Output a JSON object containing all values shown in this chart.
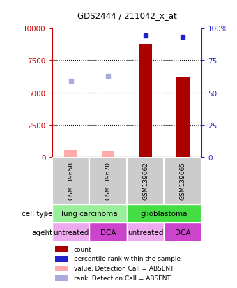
{
  "title": "GDS2444 / 211042_x_at",
  "samples": [
    "GSM139658",
    "GSM139670",
    "GSM139662",
    "GSM139665"
  ],
  "count_values": [
    0,
    0,
    8800,
    6200
  ],
  "count_absent": [
    500,
    480,
    0,
    0
  ],
  "percentile_values": [
    0,
    0,
    94,
    93
  ],
  "percentile_absent": [
    59,
    63,
    0,
    0
  ],
  "cell_types": [
    {
      "label": "lung carcinoma",
      "span": [
        0,
        2
      ],
      "color": "#99ee99"
    },
    {
      "label": "glioblastoma",
      "span": [
        2,
        4
      ],
      "color": "#44dd44"
    }
  ],
  "agents": [
    {
      "label": "untreated",
      "span": [
        0,
        1
      ],
      "color": "#eeaaee"
    },
    {
      "label": "DCA",
      "span": [
        1,
        2
      ],
      "color": "#cc44cc"
    },
    {
      "label": "untreated",
      "span": [
        2,
        3
      ],
      "color": "#eeaaee"
    },
    {
      "label": "DCA",
      "span": [
        3,
        4
      ],
      "color": "#cc44cc"
    }
  ],
  "ylim_left": [
    0,
    10000
  ],
  "ylim_right": [
    0,
    100
  ],
  "yticks_left": [
    0,
    2500,
    5000,
    7500,
    10000
  ],
  "yticks_right": [
    0,
    25,
    50,
    75,
    100
  ],
  "bar_color": "#aa0000",
  "bar_absent_color": "#ffaaaa",
  "dot_color": "#2222cc",
  "dot_absent_color": "#aaaadd",
  "legend_items": [
    {
      "color": "#aa0000",
      "label": "count"
    },
    {
      "color": "#2222cc",
      "label": "percentile rank within the sample"
    },
    {
      "color": "#ffaaaa",
      "label": "value, Detection Call = ABSENT"
    },
    {
      "color": "#aaaadd",
      "label": "rank, Detection Call = ABSENT"
    }
  ],
  "bg_color": "#ffffff",
  "sample_bg_color": "#cccccc",
  "left_label_color": "#cc0000",
  "right_label_color": "#2222cc",
  "bar_width": 0.35,
  "dot_size": 5,
  "grid_vals": [
    2500,
    5000,
    7500
  ]
}
